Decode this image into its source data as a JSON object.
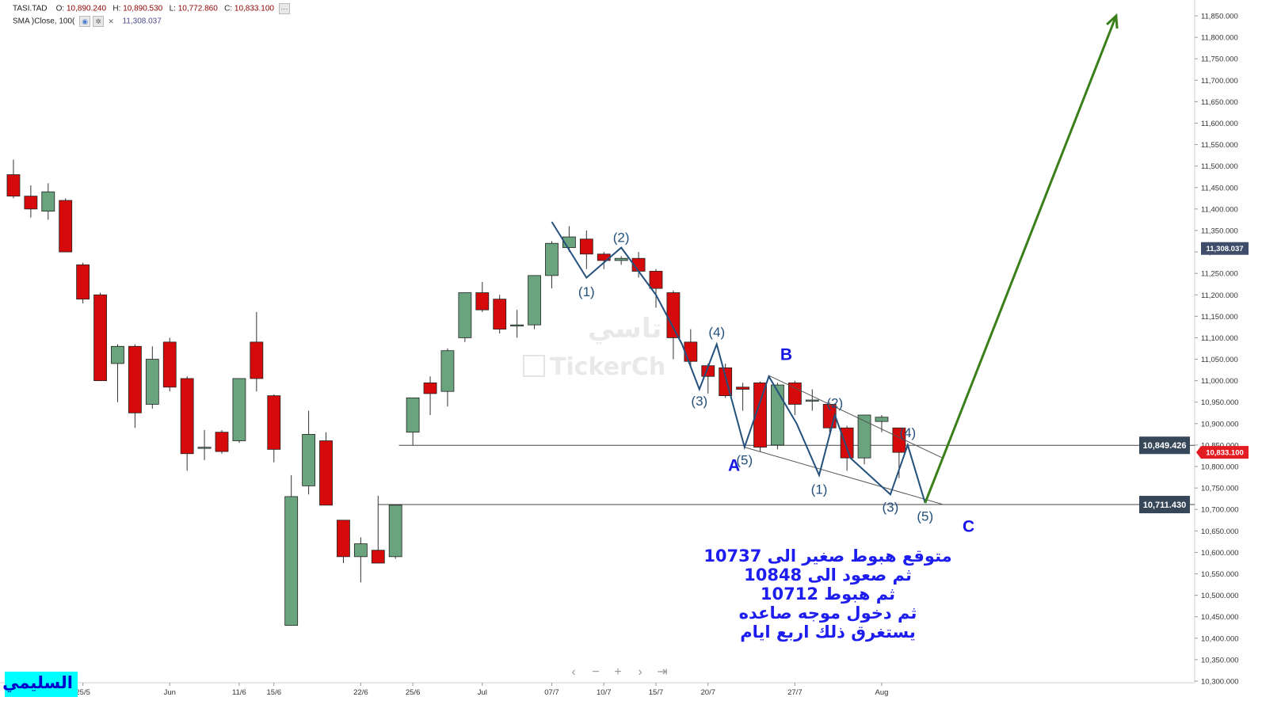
{
  "header": {
    "line1": {
      "symbol": "TASI.TAD",
      "open_label": "O:",
      "open": "10,890.240",
      "high_label": "H:",
      "high": "10,890.530",
      "low_label": "L:",
      "low": "10,772.860",
      "close_label": "C:",
      "close": "10,833.100"
    },
    "line2": {
      "indicator": "SMA )Close, 100(",
      "value": "11,308.037"
    }
  },
  "watermark": {
    "arabic": "تاسي",
    "brand": "TickerCh"
  },
  "corner_label": "السليمي",
  "nav_icons": [
    "chevron-left-icon",
    "minus-icon",
    "plus-icon",
    "chevron-right-icon",
    "skip-end-icon"
  ],
  "nav_glyphs": [
    "‹",
    "−",
    "+",
    "›",
    "⇥"
  ],
  "forecast_note": [
    "متوقع هبوط صغير الى 10737",
    "ثم صعود الى 10848",
    "ثم هبوط 10712",
    "ثم دخول موجه صاعده",
    "يستغرق ذلك اربع ايام"
  ],
  "colors": {
    "up": "#6aa47e",
    "down": "#d60a0a",
    "wave": "#23507c",
    "forecast_arrow": "#3a7f1a",
    "labels": "#1414e6",
    "price_tag_dark": "#37475a",
    "price_tag_red": "#e31b23",
    "sma_tag": "#3f4d6b"
  },
  "chart_data": {
    "type": "candlestick",
    "ylim": [
      10300,
      11850
    ],
    "y_ticks": [
      10300,
      10350,
      10400,
      10450,
      10500,
      10550,
      10600,
      10650,
      10700,
      10750,
      10800,
      10850,
      10900,
      10950,
      11000,
      11050,
      11100,
      11150,
      11200,
      11250,
      11300,
      11350,
      11400,
      11450,
      11500,
      11550,
      11600,
      11650,
      11700,
      11750,
      11800,
      11850
    ],
    "y_tick_labels": [
      "10,300.000",
      "10,350.000",
      "10,400.000",
      "10,450.000",
      "10,500.000",
      "10,550.000",
      "10,600.000",
      "10,650.000",
      "10,700.000",
      "10,750.000",
      "10,800.000",
      "10,850.000",
      "10,900.000",
      "10,950.000",
      "11,000.000",
      "11,050.000",
      "11,100.000",
      "11,150.000",
      "11,200.000",
      "11,250.000",
      "11,300.000",
      "11,350.000",
      "11,400.000",
      "11,450.000",
      "11,500.000",
      "11,550.000",
      "11,600.000",
      "11,650.000",
      "11,700.000",
      "11,750.000",
      "11,800.000",
      "11,850.000"
    ],
    "x_ticks": [
      {
        "i": 4.5,
        "label": "25/5"
      },
      {
        "i": 9.5,
        "label": "Jun"
      },
      {
        "i": 13.5,
        "label": "11/6"
      },
      {
        "i": 15.5,
        "label": "15/6"
      },
      {
        "i": 20.5,
        "label": "22/6"
      },
      {
        "i": 23.5,
        "label": "25/6"
      },
      {
        "i": 27.5,
        "label": "Jul"
      },
      {
        "i": 31.5,
        "label": "07/7"
      },
      {
        "i": 34.5,
        "label": "10/7"
      },
      {
        "i": 37.5,
        "label": "15/7"
      },
      {
        "i": 40.5,
        "label": "20/7"
      },
      {
        "i": 45.5,
        "label": "27/7"
      },
      {
        "i": 50.5,
        "label": "Aug"
      }
    ],
    "candles": [
      {
        "o": 11480,
        "h": 11515,
        "l": 11425,
        "c": 11430
      },
      {
        "o": 11430,
        "h": 11455,
        "l": 11380,
        "c": 11400
      },
      {
        "o": 11395,
        "h": 11460,
        "l": 11375,
        "c": 11440
      },
      {
        "o": 11420,
        "h": 11425,
        "l": 11300,
        "c": 11300
      },
      {
        "o": 11270,
        "h": 11275,
        "l": 11180,
        "c": 11190
      },
      {
        "o": 11200,
        "h": 11205,
        "l": 11000,
        "c": 11000
      },
      {
        "o": 11040,
        "h": 11085,
        "l": 10950,
        "c": 11080
      },
      {
        "o": 11080,
        "h": 11085,
        "l": 10890,
        "c": 10925
      },
      {
        "o": 10945,
        "h": 11080,
        "l": 10935,
        "c": 11050
      },
      {
        "o": 11090,
        "h": 11100,
        "l": 10975,
        "c": 10985
      },
      {
        "o": 11005,
        "h": 11010,
        "l": 10790,
        "c": 10830
      },
      {
        "o": 10845,
        "h": 10885,
        "l": 10815,
        "c": 10845
      },
      {
        "o": 10880,
        "h": 10885,
        "l": 10830,
        "c": 10835
      },
      {
        "o": 10860,
        "h": 11005,
        "l": 10855,
        "c": 11005
      },
      {
        "o": 11090,
        "h": 11160,
        "l": 10975,
        "c": 11005
      },
      {
        "o": 10965,
        "h": 10968,
        "l": 10810,
        "c": 10840
      },
      {
        "o": 10430,
        "h": 10780,
        "l": 10430,
        "c": 10730
      },
      {
        "o": 10755,
        "h": 10930,
        "l": 10735,
        "c": 10875
      },
      {
        "o": 10860,
        "h": 10880,
        "l": 10710,
        "c": 10710
      },
      {
        "o": 10675,
        "h": 10675,
        "l": 10575,
        "c": 10590
      },
      {
        "o": 10590,
        "h": 10635,
        "l": 10530,
        "c": 10620
      },
      {
        "o": 10605,
        "h": 10732,
        "l": 10575,
        "c": 10575
      },
      {
        "o": 10590,
        "h": 10710,
        "l": 10585,
        "c": 10710
      },
      {
        "o": 10880,
        "h": 10955,
        "l": 10850,
        "c": 10960
      },
      {
        "o": 10995,
        "h": 11010,
        "l": 10920,
        "c": 10970
      },
      {
        "o": 10975,
        "h": 11075,
        "l": 10940,
        "c": 11070
      },
      {
        "o": 11100,
        "h": 11205,
        "l": 11090,
        "c": 11205
      },
      {
        "o": 11205,
        "h": 11230,
        "l": 11160,
        "c": 11165
      },
      {
        "o": 11190,
        "h": 11200,
        "l": 11110,
        "c": 11120
      },
      {
        "o": 11130,
        "h": 11165,
        "l": 11100,
        "c": 11130
      },
      {
        "o": 11130,
        "h": 11245,
        "l": 11120,
        "c": 11245
      },
      {
        "o": 11245,
        "h": 11325,
        "l": 11215,
        "c": 11320
      },
      {
        "o": 11310,
        "h": 11360,
        "l": 11300,
        "c": 11335
      },
      {
        "o": 11330,
        "h": 11350,
        "l": 11260,
        "c": 11295
      },
      {
        "o": 11295,
        "h": 11300,
        "l": 11260,
        "c": 11280
      },
      {
        "o": 11280,
        "h": 11290,
        "l": 11270,
        "c": 11285
      },
      {
        "o": 11285,
        "h": 11300,
        "l": 11240,
        "c": 11255
      },
      {
        "o": 11255,
        "h": 11260,
        "l": 11170,
        "c": 11215
      },
      {
        "o": 11205,
        "h": 11210,
        "l": 11050,
        "c": 11100
      },
      {
        "o": 11090,
        "h": 11120,
        "l": 11030,
        "c": 11045
      },
      {
        "o": 11035,
        "h": 11040,
        "l": 10970,
        "c": 11010
      },
      {
        "o": 11030,
        "h": 11040,
        "l": 10960,
        "c": 10965
      },
      {
        "o": 10985,
        "h": 10995,
        "l": 10930,
        "c": 10980
      },
      {
        "o": 10995,
        "h": 10998,
        "l": 10835,
        "c": 10845
      },
      {
        "o": 10850,
        "h": 10995,
        "l": 10840,
        "c": 10990
      },
      {
        "o": 10995,
        "h": 11000,
        "l": 10920,
        "c": 10945
      },
      {
        "o": 10955,
        "h": 10980,
        "l": 10930,
        "c": 10955
      },
      {
        "o": 10945,
        "h": 10950,
        "l": 10880,
        "c": 10890
      },
      {
        "o": 10890,
        "h": 10895,
        "l": 10790,
        "c": 10820
      },
      {
        "o": 10820,
        "h": 10920,
        "l": 10805,
        "c": 10920
      },
      {
        "o": 10905,
        "h": 10920,
        "l": 10880,
        "c": 10915
      },
      {
        "o": 10890,
        "h": 10890,
        "l": 10773,
        "c": 10833
      }
    ],
    "horizontal_levels": [
      {
        "y": 10849.426,
        "label": "10,849.426",
        "from_i": 22.7
      },
      {
        "y": 10711.43,
        "label": "10,711.430",
        "from_i": 21.5
      }
    ],
    "price_tags": [
      {
        "y": 11308.037,
        "label": "11,308.037",
        "kind": "sma"
      },
      {
        "y": 10833.1,
        "label": "10,833.100",
        "kind": "last"
      }
    ],
    "wave_path": [
      [
        31.5,
        11370
      ],
      [
        33.5,
        11240
      ],
      [
        35.5,
        11310
      ],
      [
        37.5,
        11200
      ],
      [
        39.0,
        11085
      ],
      [
        40.0,
        10980
      ],
      [
        41.0,
        11085
      ],
      [
        42.6,
        10845
      ],
      [
        44.0,
        11010
      ],
      [
        45.6,
        10900
      ],
      [
        46.9,
        10780
      ],
      [
        47.8,
        10920
      ],
      [
        48.7,
        10820
      ]
    ],
    "projection_path": [
      [
        48.7,
        10820
      ],
      [
        51.0,
        10735
      ],
      [
        52.0,
        10850
      ],
      [
        53.0,
        10715
      ]
    ],
    "channel_lines": [
      {
        "from": [
          44.0,
          11012
        ],
        "to": [
          54.0,
          10820
        ]
      },
      {
        "from": [
          42.6,
          10845
        ],
        "to": [
          54.0,
          10712
        ]
      }
    ],
    "forecast_arrow": {
      "from": [
        53.0,
        10715
      ],
      "to": [
        64.0,
        11850
      ]
    },
    "wave_labels": [
      {
        "i": 33.5,
        "y": 11230,
        "text": "(1)",
        "below": true
      },
      {
        "i": 35.5,
        "y": 11310,
        "text": "(2)",
        "below": false
      },
      {
        "i": 40.0,
        "y": 10975,
        "text": "(3)",
        "below": true
      },
      {
        "i": 41.0,
        "y": 11090,
        "text": "(4)",
        "below": false
      },
      {
        "i": 42.6,
        "y": 10838,
        "text": "(5)",
        "below": true
      },
      {
        "i": 46.9,
        "y": 10770,
        "text": "(1)",
        "below": true
      },
      {
        "i": 47.8,
        "y": 10925,
        "text": "(2)",
        "below": false
      },
      {
        "i": 51.0,
        "y": 10728,
        "text": "(3)",
        "below": true
      },
      {
        "i": 52.0,
        "y": 10855,
        "text": "(4)",
        "below": false
      },
      {
        "i": 53.0,
        "y": 10707,
        "text": "(5)",
        "below": true
      }
    ],
    "abc_labels": [
      {
        "i": 42.0,
        "y": 10790,
        "text": "A"
      },
      {
        "i": 45.0,
        "y": 11048,
        "text": "B"
      },
      {
        "i": 55.5,
        "y": 10648,
        "text": "C"
      }
    ]
  }
}
